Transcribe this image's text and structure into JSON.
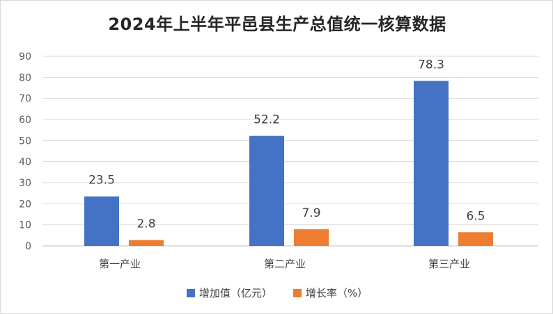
{
  "chart_data": {
    "type": "bar",
    "title": "2024年上半年平邑县生产总值统一核算数据",
    "categories": [
      "第一产业",
      "第二产业",
      "第三产业"
    ],
    "series": [
      {
        "name": "增加值（亿元）",
        "values": [
          23.5,
          52.2,
          78.3
        ],
        "color": "#4472C4"
      },
      {
        "name": "增长率（%）",
        "values": [
          2.8,
          7.9,
          6.5
        ],
        "color": "#ED7D31"
      }
    ],
    "ylim": [
      0,
      90
    ],
    "yticks": [
      0,
      10,
      20,
      30,
      40,
      50,
      60,
      70,
      80,
      90
    ],
    "grid": true,
    "legend": "bottom"
  }
}
